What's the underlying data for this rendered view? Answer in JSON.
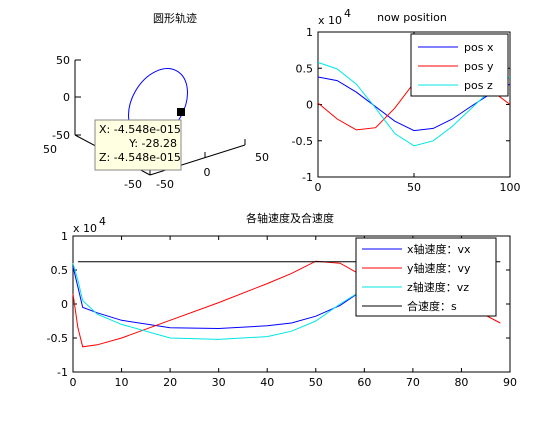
{
  "chart_data": [
    {
      "type": "line",
      "projection": "3d",
      "title": "圆形轨迹",
      "axes": {
        "x_ticks": [
          "-50",
          "50"
        ],
        "y_ticks": [
          "-50",
          "0",
          "50"
        ],
        "z_ticks": [
          "50",
          "0",
          "-50"
        ]
      },
      "series": [
        {
          "color": "#0000ff",
          "shape": "circle",
          "center": [
            0,
            0,
            0
          ],
          "radius": 50
        }
      ],
      "marker": {
        "x": 0,
        "y": -28.28,
        "z": 0
      },
      "datatip": {
        "x_label": "X: -4.548e-015",
        "y_label": "Y: -28.28",
        "z_label": "Z: -4.548e-015"
      }
    },
    {
      "type": "line",
      "title": "now position",
      "exponent_label": "x 10",
      "exponent_power": "4",
      "xlim": [
        0,
        100
      ],
      "ylim": [
        -1,
        1
      ],
      "x_ticks": [
        "0",
        "50",
        "100"
      ],
      "y_ticks": [
        "1",
        "0.5",
        "0",
        "-0.5",
        "-1"
      ],
      "series": [
        {
          "name": "pos x",
          "color": "#0000ff",
          "x": [
            0,
            10,
            20,
            30,
            40,
            50,
            60,
            70,
            80,
            90,
            100
          ],
          "y": [
            0.38,
            0.33,
            0.17,
            -0.03,
            -0.23,
            -0.36,
            -0.33,
            -0.2,
            -0.02,
            0.15,
            0.28
          ]
        },
        {
          "name": "pos y",
          "color": "#ff0000",
          "x": [
            0,
            10,
            20,
            30,
            40,
            50,
            60,
            70,
            80,
            90,
            100
          ],
          "y": [
            0.02,
            -0.2,
            -0.35,
            -0.32,
            -0.05,
            0.3,
            0.55,
            0.6,
            0.48,
            0.2,
            0.0
          ]
        },
        {
          "name": "pos z",
          "color": "#00e5e5",
          "x": [
            0,
            10,
            20,
            30,
            40,
            50,
            60,
            70,
            80,
            90,
            100
          ],
          "y": [
            0.58,
            0.49,
            0.28,
            -0.05,
            -0.4,
            -0.57,
            -0.5,
            -0.3,
            -0.05,
            0.2,
            0.38
          ]
        }
      ],
      "legend": "top-right"
    },
    {
      "type": "line",
      "title": "各轴速度及合速度",
      "exponent_label": "x 10",
      "exponent_power": "4",
      "xlim": [
        0,
        90
      ],
      "ylim": [
        -1,
        1
      ],
      "x_ticks": [
        "0",
        "10",
        "20",
        "30",
        "40",
        "50",
        "60",
        "70",
        "80",
        "90"
      ],
      "y_ticks": [
        "1",
        "0.5",
        "0",
        "-0.5",
        "-1"
      ],
      "series": [
        {
          "name": "x轴速度：vx",
          "color": "#0000ff",
          "x": [
            0,
            1,
            2,
            5,
            10,
            20,
            30,
            40,
            45,
            50,
            55,
            60,
            65
          ],
          "y": [
            0.55,
            0.25,
            -0.05,
            -0.13,
            -0.24,
            -0.35,
            -0.36,
            -0.32,
            -0.28,
            -0.18,
            -0.02,
            0.22,
            0.35
          ]
        },
        {
          "name": "y轴速度：vy",
          "color": "#ff0000",
          "x": [
            0,
            1,
            2,
            5,
            10,
            20,
            30,
            40,
            45,
            50,
            55,
            60,
            70,
            80,
            88
          ],
          "y": [
            0.15,
            -0.35,
            -0.63,
            -0.6,
            -0.5,
            -0.24,
            0.02,
            0.3,
            0.45,
            0.63,
            0.6,
            0.4,
            0.2,
            0.02,
            -0.28
          ]
        },
        {
          "name": "z轴速度：vz",
          "color": "#00e5e5",
          "x": [
            0,
            1,
            2,
            5,
            10,
            20,
            30,
            40,
            45,
            50,
            55,
            60,
            65
          ],
          "y": [
            0.6,
            0.35,
            0.05,
            -0.15,
            -0.3,
            -0.5,
            -0.52,
            -0.48,
            -0.4,
            -0.25,
            0.0,
            0.22,
            0.32
          ]
        },
        {
          "name": "合速度：s",
          "color": "#000000",
          "x": [
            1,
            88
          ],
          "y": [
            0.62,
            0.62
          ]
        }
      ],
      "legend": "top-right"
    }
  ]
}
